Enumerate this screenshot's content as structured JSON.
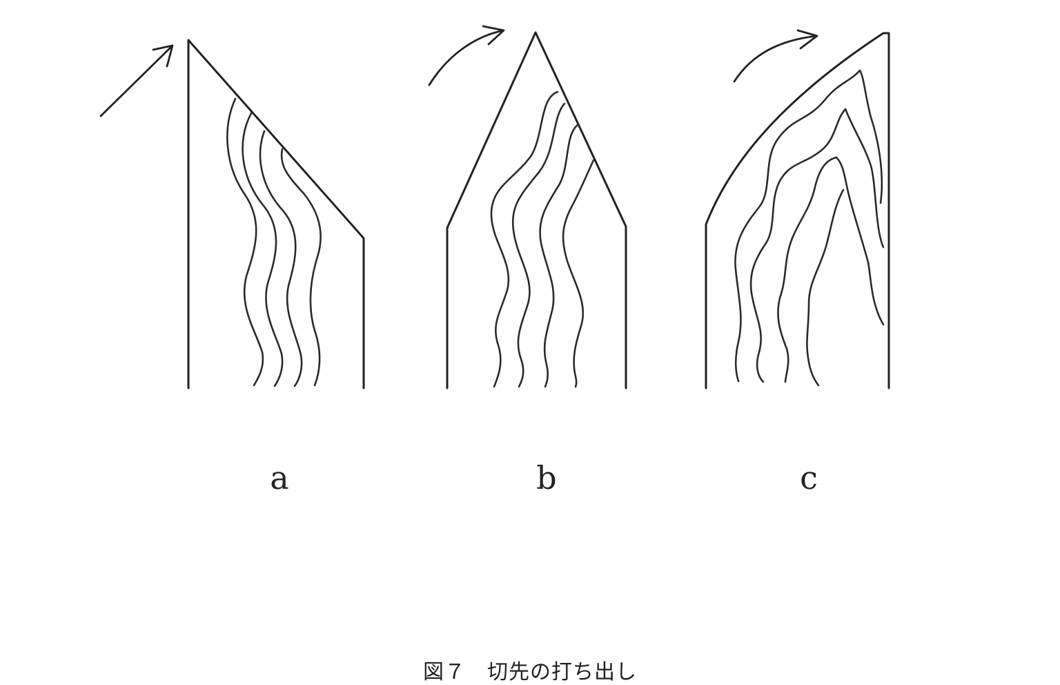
{
  "panels": [
    {
      "label": "a"
    },
    {
      "label": "b"
    },
    {
      "label": "c"
    }
  ],
  "caption": "図７　切先の打ち出し",
  "colors": {
    "line": "#222222",
    "background": "#ffffff"
  },
  "icons": [
    "curved-arrow-icon"
  ]
}
